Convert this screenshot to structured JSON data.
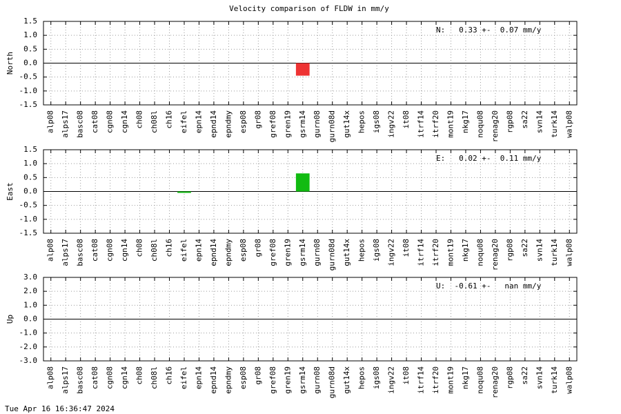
{
  "title": "Velocity comparison of FLDW in mm/y",
  "footer": "Tue Apr 16 16:36:47 2024",
  "chart_data": [
    {
      "type": "bar",
      "ylabel": "North",
      "annotation": "N:   0.33 +-  0.07 mm/y",
      "color": "#ee3333",
      "grid": true,
      "categories": [
        "alp08",
        "alps17",
        "basc08",
        "cat08",
        "cgn08",
        "cgn14",
        "ch08",
        "ch08l",
        "ch16",
        "eifel",
        "epn14",
        "epnd14",
        "epndmy",
        "esp08",
        "gr08",
        "gref08",
        "gren19",
        "gsrm14",
        "gurn08",
        "gurn08d",
        "gut14x",
        "hepos",
        "igs08",
        "ingv22",
        "it08",
        "itrf14",
        "itrf20",
        "mont19",
        "nkg17",
        "noqu08",
        "renag20",
        "rgp08",
        "sa22",
        "svn14",
        "turk14",
        "walp08"
      ],
      "values": [
        null,
        null,
        null,
        null,
        null,
        null,
        null,
        null,
        null,
        null,
        null,
        null,
        null,
        null,
        null,
        null,
        null,
        -0.45,
        null,
        null,
        null,
        null,
        null,
        null,
        null,
        null,
        null,
        null,
        null,
        null,
        null,
        null,
        null,
        null,
        null,
        null
      ],
      "ylim": [
        -1.5,
        1.5
      ],
      "yticks": [
        {
          "value": 1.5,
          "label": "1.5"
        },
        {
          "value": 1,
          "label": "1.0"
        },
        {
          "value": 0.5,
          "label": "0.5"
        },
        {
          "value": 0,
          "label": "0.0"
        },
        {
          "value": -0.5,
          "label": "-0.5"
        },
        {
          "value": -1,
          "label": "-1.0"
        },
        {
          "value": -1.5,
          "label": "-1.5"
        }
      ]
    },
    {
      "type": "bar",
      "ylabel": "East",
      "annotation": "E:   0.02 +-  0.11 mm/y",
      "color": "#11bb11",
      "grid": true,
      "categories": [
        "alp08",
        "alps17",
        "basc08",
        "cat08",
        "cgn08",
        "cgn14",
        "ch08",
        "ch08l",
        "ch16",
        "eifel",
        "epn14",
        "epnd14",
        "epndmy",
        "esp08",
        "gr08",
        "gref08",
        "gren19",
        "gsrm14",
        "gurn08",
        "gurn08d",
        "gut14x",
        "hepos",
        "igs08",
        "ingv22",
        "it08",
        "itrf14",
        "itrf20",
        "mont19",
        "nkg17",
        "noqu08",
        "renag20",
        "rgp08",
        "sa22",
        "svn14",
        "turk14",
        "walp08"
      ],
      "values": [
        null,
        null,
        null,
        null,
        null,
        null,
        null,
        null,
        null,
        -0.05,
        null,
        null,
        null,
        null,
        null,
        null,
        null,
        0.65,
        null,
        null,
        null,
        null,
        null,
        null,
        null,
        null,
        null,
        null,
        null,
        null,
        null,
        null,
        null,
        null,
        null,
        null
      ],
      "ylim": [
        -1.5,
        1.5
      ],
      "yticks": [
        {
          "value": 1.5,
          "label": "1.5"
        },
        {
          "value": 1,
          "label": "1.0"
        },
        {
          "value": 0.5,
          "label": "0.5"
        },
        {
          "value": 0,
          "label": "0.0"
        },
        {
          "value": -0.5,
          "label": "-0.5"
        },
        {
          "value": -1,
          "label": "-1.0"
        },
        {
          "value": -1.5,
          "label": "-1.5"
        }
      ]
    },
    {
      "type": "bar",
      "ylabel": "Up",
      "annotation": "U:  -0.61 +-   nan mm/y",
      "color": "#3333ee",
      "grid": true,
      "categories": [
        "alp08",
        "alps17",
        "basc08",
        "cat08",
        "cgn08",
        "cgn14",
        "ch08",
        "ch08l",
        "ch16",
        "eifel",
        "epn14",
        "epnd14",
        "epndmy",
        "esp08",
        "gr08",
        "gref08",
        "gren19",
        "gsrm14",
        "gurn08",
        "gurn08d",
        "gut14x",
        "hepos",
        "igs08",
        "ingv22",
        "it08",
        "itrf14",
        "itrf20",
        "mont19",
        "nkg17",
        "noqu08",
        "renag20",
        "rgp08",
        "sa22",
        "svn14",
        "turk14",
        "walp08"
      ],
      "values": [
        null,
        null,
        null,
        null,
        null,
        null,
        null,
        null,
        null,
        null,
        null,
        null,
        null,
        null,
        null,
        null,
        null,
        null,
        null,
        null,
        null,
        null,
        null,
        null,
        null,
        null,
        null,
        null,
        null,
        null,
        null,
        null,
        null,
        null,
        null,
        null
      ],
      "ylim": [
        -3,
        3
      ],
      "yticks": [
        {
          "value": 3,
          "label": "3.0"
        },
        {
          "value": 2,
          "label": "2.0"
        },
        {
          "value": 1,
          "label": "1.0"
        },
        {
          "value": 0,
          "label": "0.0"
        },
        {
          "value": -1,
          "label": "-1.0"
        },
        {
          "value": -2,
          "label": "-2.0"
        },
        {
          "value": -3,
          "label": "-3.0"
        }
      ]
    }
  ]
}
